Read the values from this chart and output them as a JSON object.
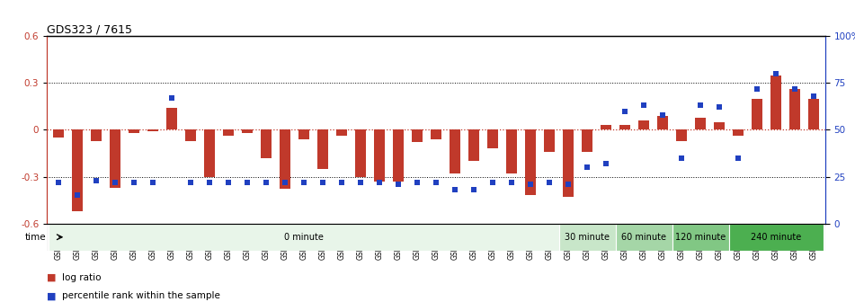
{
  "title": "GDS323 / 7615",
  "samples": [
    "GSM5811",
    "GSM5812",
    "GSM5813",
    "GSM5814",
    "GSM5815",
    "GSM5816",
    "GSM5817",
    "GSM5818",
    "GSM5819",
    "GSM5820",
    "GSM5821",
    "GSM5822",
    "GSM5823",
    "GSM5824",
    "GSM5825",
    "GSM5826",
    "GSM5827",
    "GSM5828",
    "GSM5829",
    "GSM5830",
    "GSM5831",
    "GSM5832",
    "GSM5833",
    "GSM5834",
    "GSM5835",
    "GSM5836",
    "GSM5837",
    "GSM5838",
    "GSM5839",
    "GSM5840",
    "GSM5841",
    "GSM5842",
    "GSM5843",
    "GSM5844",
    "GSM5845",
    "GSM5846",
    "GSM5847",
    "GSM5848",
    "GSM5849",
    "GSM5850",
    "GSM5851"
  ],
  "log_ratio": [
    -0.05,
    -0.52,
    -0.07,
    -0.37,
    -0.02,
    -0.01,
    0.14,
    -0.07,
    -0.3,
    -0.04,
    -0.02,
    -0.18,
    -0.38,
    -0.06,
    -0.25,
    -0.04,
    -0.3,
    -0.33,
    -0.33,
    -0.08,
    -0.06,
    -0.28,
    -0.2,
    -0.12,
    -0.28,
    -0.42,
    -0.14,
    -0.43,
    -0.14,
    0.03,
    0.03,
    0.06,
    0.09,
    -0.07,
    0.08,
    0.05,
    -0.04,
    0.2,
    0.35,
    0.26,
    0.2
  ],
  "percentile": [
    22,
    15,
    23,
    22,
    22,
    22,
    67,
    22,
    22,
    22,
    22,
    22,
    22,
    22,
    22,
    22,
    22,
    22,
    21,
    22,
    22,
    18,
    18,
    22,
    22,
    21,
    22,
    21,
    30,
    32,
    60,
    63,
    58,
    35,
    63,
    62,
    35,
    72,
    80,
    72,
    68
  ],
  "time_groups": [
    {
      "label": "0 minute",
      "start": 0,
      "end": 27,
      "color": "#e8f5e9"
    },
    {
      "label": "30 minute",
      "start": 27,
      "end": 30,
      "color": "#c8e6c9"
    },
    {
      "label": "60 minute",
      "start": 30,
      "end": 33,
      "color": "#a5d6a7"
    },
    {
      "label": "120 minute",
      "start": 33,
      "end": 36,
      "color": "#81c784"
    },
    {
      "label": "240 minute",
      "start": 36,
      "end": 41,
      "color": "#4caf50"
    }
  ],
  "bar_color": "#c0392b",
  "dot_color": "#2040c0",
  "ylim_left": [
    -0.6,
    0.6
  ],
  "ylim_right": [
    0,
    100
  ],
  "yticks_left": [
    -0.6,
    -0.3,
    0.0,
    0.3,
    0.6
  ],
  "ytick_labels_left": [
    "-0.6",
    "-0.3",
    "0",
    "0.3",
    "0.6"
  ],
  "yticks_right": [
    0,
    25,
    50,
    75,
    100
  ],
  "ytick_labels_right": [
    "0",
    "25",
    "50",
    "75",
    "100%"
  ],
  "dotted_lines": [
    -0.3,
    0.3
  ],
  "background_color": "#ffffff",
  "legend_items": [
    {
      "label": "log ratio",
      "color": "#c0392b"
    },
    {
      "label": "percentile rank within the sample",
      "color": "#2040c0"
    }
  ]
}
